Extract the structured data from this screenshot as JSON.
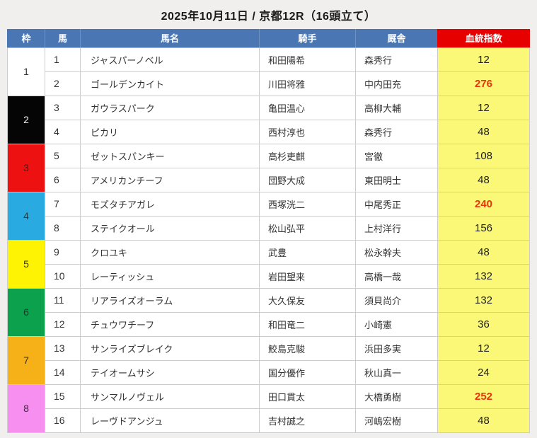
{
  "page": {
    "title": "2025年10月11日 / 京都12R（16頭立て）"
  },
  "colors": {
    "header_bg": "#4a77b4",
    "index_header_bg": "#e60000",
    "index_cell_bg": "#fbf877",
    "highlight_text": "#e8340c"
  },
  "table": {
    "headers": {
      "frame": "枠",
      "number": "馬",
      "name": "馬名",
      "jockey": "騎手",
      "stable": "厩舎",
      "index": "血統指数"
    },
    "frames": [
      {
        "no": "1",
        "bg": "#ffffff",
        "fg": "#333333"
      },
      {
        "no": "2",
        "bg": "#050505",
        "fg": "#f2f2f2"
      },
      {
        "no": "3",
        "bg": "#ee1111",
        "fg": "#3a2020"
      },
      {
        "no": "4",
        "bg": "#29abe2",
        "fg": "#2a3a44"
      },
      {
        "no": "5",
        "bg": "#fdf303",
        "fg": "#3a3a20"
      },
      {
        "no": "6",
        "bg": "#0ba14d",
        "fg": "#203a2a"
      },
      {
        "no": "7",
        "bg": "#f7b118",
        "fg": "#3a3320"
      },
      {
        "no": "8",
        "bg": "#f78ff0",
        "fg": "#3a2a3a"
      }
    ],
    "rows": [
      {
        "frame": 1,
        "number": "1",
        "name": "ジャスパーノベル",
        "jockey": "和田陽希",
        "stable": "森秀行",
        "index": "12",
        "highlight": false
      },
      {
        "frame": 1,
        "number": "2",
        "name": "ゴールデンカイト",
        "jockey": "川田将雅",
        "stable": "中内田充",
        "index": "276",
        "highlight": true
      },
      {
        "frame": 2,
        "number": "3",
        "name": "ガウラスパーク",
        "jockey": "亀田温心",
        "stable": "高柳大輔",
        "index": "12",
        "highlight": false
      },
      {
        "frame": 2,
        "number": "4",
        "name": "ピカリ",
        "jockey": "西村淳也",
        "stable": "森秀行",
        "index": "48",
        "highlight": false
      },
      {
        "frame": 3,
        "number": "5",
        "name": "ゼットスパンキー",
        "jockey": "高杉吏麒",
        "stable": "宮徹",
        "index": "108",
        "highlight": false
      },
      {
        "frame": 3,
        "number": "6",
        "name": "アメリカンチーフ",
        "jockey": "団野大成",
        "stable": "東田明士",
        "index": "48",
        "highlight": false
      },
      {
        "frame": 4,
        "number": "7",
        "name": "モズタチアガレ",
        "jockey": "西塚洸二",
        "stable": "中尾秀正",
        "index": "240",
        "highlight": true
      },
      {
        "frame": 4,
        "number": "8",
        "name": "ステイクオール",
        "jockey": "松山弘平",
        "stable": "上村洋行",
        "index": "156",
        "highlight": false
      },
      {
        "frame": 5,
        "number": "9",
        "name": "クロユキ",
        "jockey": "武豊",
        "stable": "松永幹夫",
        "index": "48",
        "highlight": false
      },
      {
        "frame": 5,
        "number": "10",
        "name": "レーティッシュ",
        "jockey": "岩田望来",
        "stable": "高橋一哉",
        "index": "132",
        "highlight": false
      },
      {
        "frame": 6,
        "number": "11",
        "name": "リアライズオーラム",
        "jockey": "大久保友",
        "stable": "須貝尚介",
        "index": "132",
        "highlight": false
      },
      {
        "frame": 6,
        "number": "12",
        "name": "チュウワチーフ",
        "jockey": "和田竜二",
        "stable": "小崎憲",
        "index": "36",
        "highlight": false
      },
      {
        "frame": 7,
        "number": "13",
        "name": "サンライズブレイク",
        "jockey": "鮫島克駿",
        "stable": "浜田多実",
        "index": "12",
        "highlight": false
      },
      {
        "frame": 7,
        "number": "14",
        "name": "テイオームサシ",
        "jockey": "国分優作",
        "stable": "秋山真一",
        "index": "24",
        "highlight": false
      },
      {
        "frame": 8,
        "number": "15",
        "name": "サンマルノヴェル",
        "jockey": "田口貫太",
        "stable": "大橋勇樹",
        "index": "252",
        "highlight": true
      },
      {
        "frame": 8,
        "number": "16",
        "name": "レーヴドアンジュ",
        "jockey": "吉村誠之",
        "stable": "河嶋宏樹",
        "index": "48",
        "highlight": false
      }
    ]
  }
}
